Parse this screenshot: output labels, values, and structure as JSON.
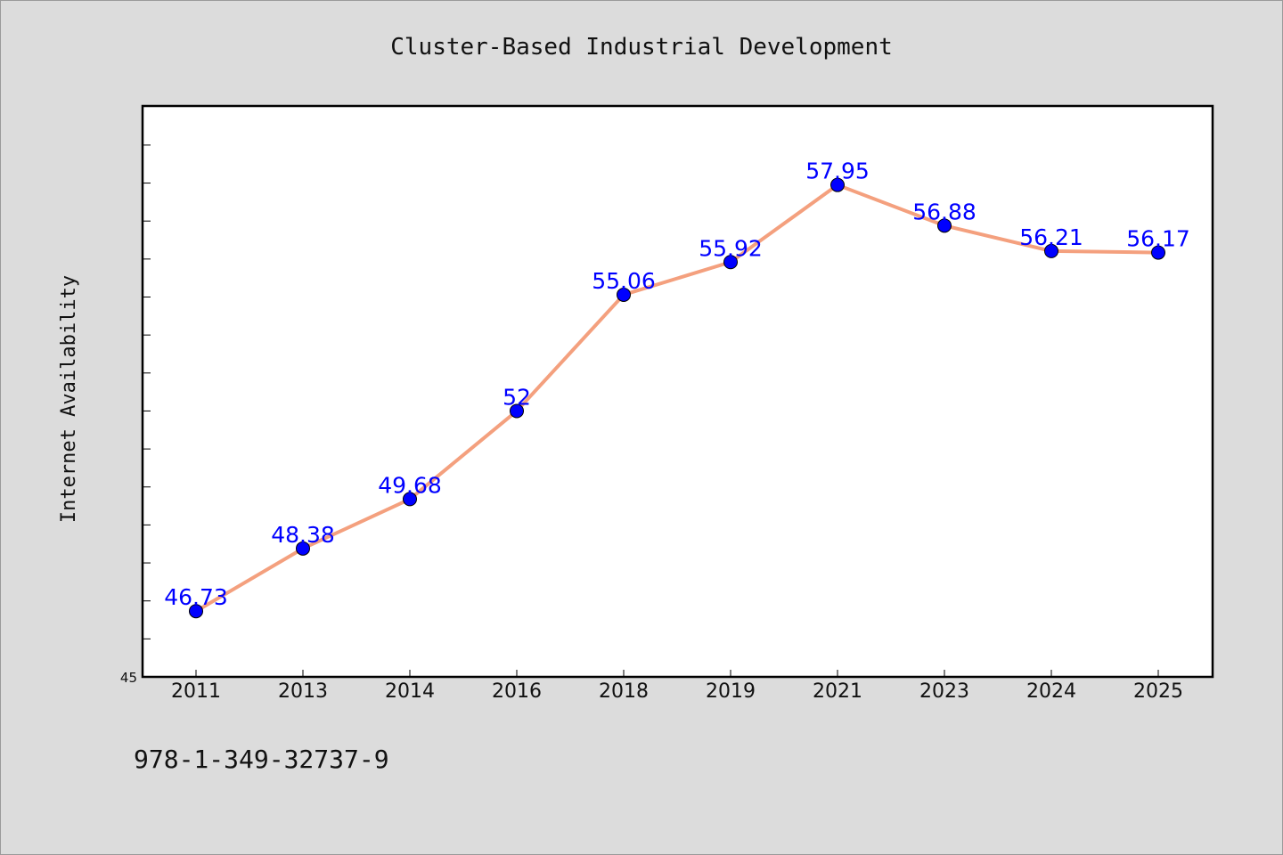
{
  "chart_data": {
    "type": "line",
    "title": "Cluster-Based Industrial Development",
    "xlabel": "",
    "ylabel": "Internet Availability",
    "categories": [
      "2011",
      "2013",
      "2014",
      "2016",
      "2018",
      "2019",
      "2021",
      "2023",
      "2024",
      "2025"
    ],
    "series": [
      {
        "values": [
          46.73,
          48.38,
          49.68,
          52,
          55.06,
          55.92,
          57.95,
          56.88,
          56.21,
          56.17
        ],
        "data_labels": [
          "46.73",
          "48.38",
          "49.68",
          "52",
          "55.06",
          "55.92",
          "57.95",
          "56.88",
          "56.21",
          "56.17"
        ],
        "line_color": "#f4a07e",
        "marker_color": "#0000ff"
      }
    ],
    "ylim": [
      45,
      60
    ],
    "y_tick_labels": [
      {
        "value": 45,
        "label": "45"
      }
    ],
    "y_minor_step": 1,
    "grid": false,
    "legend": "none"
  },
  "footer": {
    "isbn": "978-1-349-32737-9"
  },
  "colors": {
    "background": "#dcdcdc",
    "plot_background": "#ffffff",
    "line": "#f4a07e",
    "marker": "#0000ff",
    "data_label": "#0000ff"
  }
}
